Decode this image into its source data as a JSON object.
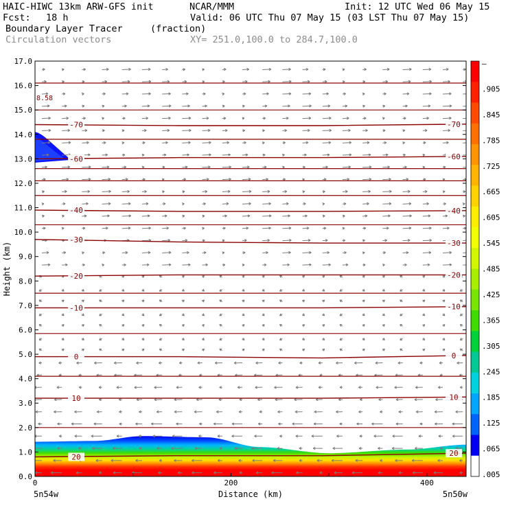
{
  "header": {
    "model": "HAIC-HIWC 13km ARW-GFS init",
    "org": "NCAR/MMM",
    "init": "Init: 12 UTC Wed 06 May 15",
    "fcst_label": "Fcst:",
    "fcst_value": "18 h",
    "valid": "Valid: 06 UTC Thu 07 May 15 (03 LST Thu 07 May 15)",
    "field": "Boundary Layer Tracer",
    "units": "(fraction)",
    "vectors": "Circulation vectors",
    "xy": "XY= 251.0,100.0 to 284.7,100.0"
  },
  "chart_data": {
    "type": "heatmap",
    "ylabel": "Height (km)",
    "xlabel": "Distance (km)",
    "xlim": [
      0,
      440
    ],
    "ylim": [
      0.0,
      17.0
    ],
    "y_ticks": [
      "0.0",
      "1.0",
      "2.0",
      "3.0",
      "4.0",
      "5.0",
      "6.0",
      "7.0",
      "8.0",
      "9.0",
      "10.0",
      "11.0",
      "12.0",
      "13.0",
      "14.0",
      "15.0",
      "16.0",
      "17.0"
    ],
    "x_ticks": [
      {
        "value": 0,
        "label": "0"
      },
      {
        "value": 200,
        "label": "200"
      },
      {
        "value": 400,
        "label": "400"
      }
    ],
    "x_end_labels": {
      "left": "5n54w",
      "right": "5n50w"
    },
    "colorbar": {
      "labels": [
        "–",
        ".905",
        ".845",
        ".785",
        ".725",
        ".665",
        ".605",
        ".545",
        ".485",
        ".425",
        ".365",
        ".305",
        ".245",
        ".185",
        ".125",
        ".065",
        ".005"
      ],
      "colors": [
        "#ff0000",
        "#ff2000",
        "#ff4a00",
        "#ff7000",
        "#ff9400",
        "#ffb400",
        "#ffd200",
        "#ffee00",
        "#f2ff00",
        "#d2f600",
        "#a8ee00",
        "#78e600",
        "#40dc00",
        "#00d23c",
        "#00c896",
        "#00d2e0",
        "#00a6ff",
        "#0064ff",
        "#0000f5",
        "#ffffff"
      ]
    },
    "contours": [
      {
        "label": "-70",
        "heights": [
          14.4,
          14.36,
          14.36,
          14.42
        ]
      },
      {
        "label": "-60",
        "heights": [
          13.0,
          13.05,
          13.05,
          13.1
        ]
      },
      {
        "label": "-40",
        "heights": [
          10.9,
          10.85,
          10.85,
          10.88
        ]
      },
      {
        "label": "-30",
        "heights": [
          9.7,
          9.6,
          9.55,
          9.55
        ]
      },
      {
        "label": "-20",
        "heights": [
          8.2,
          8.25,
          8.25,
          8.25
        ]
      },
      {
        "label": "-10",
        "heights": [
          6.9,
          6.9,
          6.9,
          6.95
        ]
      },
      {
        "label": "0",
        "heights": [
          4.9,
          4.9,
          4.85,
          4.95
        ]
      },
      {
        "label": "10",
        "heights": [
          3.2,
          3.2,
          3.2,
          3.25
        ]
      },
      {
        "label": "20",
        "heights": [
          0.8,
          0.85,
          0.85,
          0.95
        ]
      }
    ],
    "contour_label_left": "8.58",
    "tracer_top_km": [
      {
        "x": 0,
        "y": 1.42
      },
      {
        "x": 60,
        "y": 1.45
      },
      {
        "x": 110,
        "y": 1.65
      },
      {
        "x": 175,
        "y": 1.6
      },
      {
        "x": 230,
        "y": 1.2
      },
      {
        "x": 300,
        "y": 0.95
      },
      {
        "x": 380,
        "y": 1.1
      },
      {
        "x": 440,
        "y": 1.3
      }
    ],
    "upper_blob": {
      "x_max": 30,
      "y_min": 12.9,
      "y_max": 14.1
    }
  }
}
